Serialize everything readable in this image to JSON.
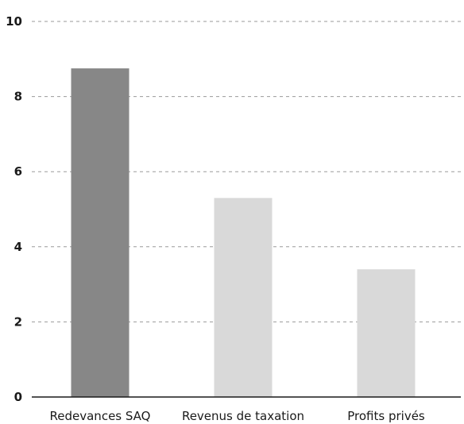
{
  "chart_data": {
    "type": "bar",
    "title": "",
    "xlabel": "",
    "ylabel": "",
    "categories": [
      "Redevances SAQ",
      "Revenus de taxation",
      "Profits privés"
    ],
    "values": [
      8.75,
      5.3,
      3.4
    ],
    "ylim": [
      0,
      10
    ],
    "yticks": [
      "0",
      "2",
      "4",
      "6",
      "8",
      "10"
    ],
    "grid": true,
    "legend": "none",
    "colors": [
      "#878787",
      "#d9d9d9",
      "#d9d9d9"
    ]
  }
}
